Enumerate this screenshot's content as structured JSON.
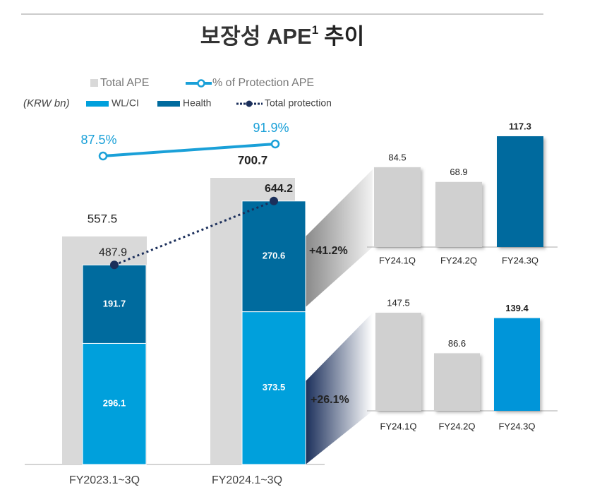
{
  "title": {
    "main": "보장성 APE",
    "footnote": "1",
    "suffix": "추이"
  },
  "chart_data": [
    {
      "type": "bar",
      "stacked": true,
      "unit": "(KRW bn)",
      "categories": [
        "FY2023.1~3Q",
        "FY2024.1~3Q"
      ],
      "series": [
        {
          "name": "Total APE",
          "type": "bar",
          "color": "#d9d9d9",
          "values": [
            557.5,
            700.7
          ]
        },
        {
          "name": "WL/CI",
          "type": "bar",
          "color": "#00a0dc",
          "values": [
            296.1,
            373.5
          ]
        },
        {
          "name": "Health",
          "type": "bar",
          "color": "#006b9e",
          "values": [
            191.7,
            270.6
          ]
        },
        {
          "name": "Total protection",
          "type": "line",
          "style": "dotted",
          "color": "#1b2f5b",
          "values": [
            487.9,
            644.2
          ]
        },
        {
          "name": "% of Protection APE",
          "type": "line",
          "axis": "y2",
          "color": "#1aa0d8",
          "values": [
            87.5,
            91.9
          ],
          "value_labels": [
            "87.5%",
            "91.9%"
          ]
        }
      ],
      "annotations": [
        "+41.2%",
        "+26.1%"
      ]
    },
    {
      "type": "bar",
      "categories": [
        "FY24.1Q",
        "FY24.2Q",
        "FY24.3Q"
      ],
      "values": [
        84.5,
        68.9,
        117.3
      ],
      "colors": [
        "#d0d0d0",
        "#d0d0d0",
        "#006b9e"
      ]
    },
    {
      "type": "bar",
      "categories": [
        "FY24.1Q",
        "FY24.2Q",
        "FY24.3Q"
      ],
      "values": [
        147.5,
        86.6,
        139.4
      ],
      "colors": [
        "#d0d0d0",
        "#d0d0d0",
        "#0095d9"
      ]
    }
  ]
}
